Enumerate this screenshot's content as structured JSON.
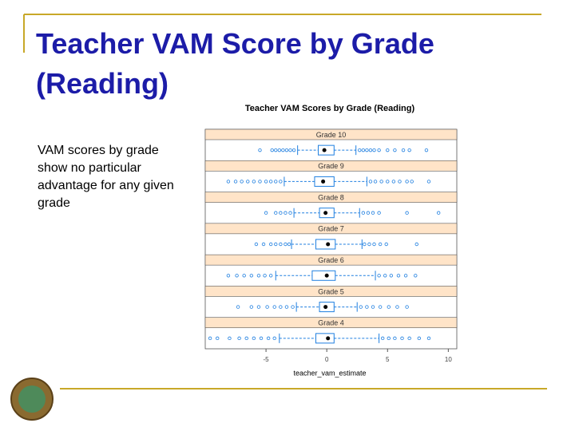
{
  "slide": {
    "title": "Teacher VAM Score by Grade (Reading)",
    "bullet": "VAM scores by grade show no particular advantage for any given grade"
  },
  "chart_data": {
    "type": "box",
    "title": "Teacher VAM Scores by Grade (Reading)",
    "xlabel": "teacher_vam_estimate",
    "categories": [
      "Grade 10",
      "Grade 9",
      "Grade 8",
      "Grade 7",
      "Grade 6",
      "Grade 5",
      "Grade 4"
    ],
    "color": "#1f7fe0",
    "values": [
      {
        "low": -2.4,
        "q1": -0.7,
        "median": -0.2,
        "q3": 0.6,
        "high": 2.4,
        "outliers": [
          -5.5,
          -4.5,
          -4.2,
          -3.9,
          -3.6,
          -3.3,
          -3.0,
          -2.7,
          2.7,
          3.0,
          3.3,
          3.6,
          3.9,
          4.3,
          5.0,
          5.6,
          6.3,
          6.8,
          8.2
        ]
      },
      {
        "low": -3.5,
        "q1": -1.0,
        "median": -0.3,
        "q3": 0.6,
        "high": 3.3,
        "outliers": [
          -8.1,
          -7.5,
          -7.0,
          -6.5,
          -6.0,
          -5.5,
          -5.0,
          -4.6,
          -4.2,
          -3.8,
          3.6,
          4.0,
          4.5,
          5.0,
          5.5,
          6.0,
          6.6,
          7.0,
          8.4
        ]
      },
      {
        "low": -2.7,
        "q1": -0.6,
        "median": -0.1,
        "q3": 0.6,
        "high": 2.7,
        "outliers": [
          -5.0,
          -4.2,
          -3.8,
          -3.4,
          -3.0,
          3.0,
          3.4,
          3.8,
          4.3,
          6.6,
          9.2
        ]
      },
      {
        "low": -2.9,
        "q1": -0.9,
        "median": 0.1,
        "q3": 0.7,
        "high": 2.9,
        "outliers": [
          -5.8,
          -5.2,
          -4.6,
          -4.2,
          -3.8,
          -3.4,
          -3.1,
          3.1,
          3.5,
          3.9,
          4.4,
          4.9,
          7.4
        ]
      },
      {
        "low": -4.2,
        "q1": -1.2,
        "median": 0.0,
        "q3": 0.7,
        "high": 4.0,
        "outliers": [
          -8.1,
          -7.4,
          -6.8,
          -6.2,
          -5.6,
          -5.1,
          -4.6,
          4.3,
          4.8,
          5.3,
          5.9,
          6.5,
          7.3
        ]
      },
      {
        "low": -2.5,
        "q1": -0.6,
        "median": -0.1,
        "q3": 0.6,
        "high": 2.5,
        "outliers": [
          -7.3,
          -6.2,
          -5.6,
          -4.9,
          -4.3,
          -3.8,
          -3.3,
          -2.8,
          2.8,
          3.3,
          3.8,
          4.4,
          5.1,
          5.8,
          6.6
        ]
      },
      {
        "low": -3.9,
        "q1": -0.9,
        "median": 0.1,
        "q3": 0.6,
        "high": 4.3,
        "outliers": [
          -9.6,
          -9.0,
          -8.0,
          -7.2,
          -6.6,
          -6.0,
          -5.4,
          -4.8,
          -4.3,
          4.6,
          5.1,
          5.6,
          6.2,
          6.8,
          7.6,
          8.4
        ]
      }
    ],
    "xlim": [
      -10,
      10.7
    ],
    "xticks": [
      -5,
      0,
      5,
      10
    ]
  }
}
